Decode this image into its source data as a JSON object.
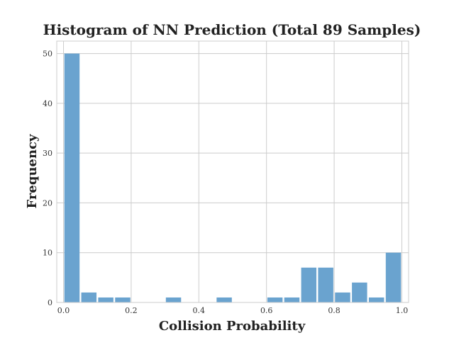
{
  "chart_data": {
    "type": "bar",
    "title": "Histogram of NN Prediction (Total 89 Samples)",
    "xlabel": "Collision Probability",
    "ylabel": "Frequency",
    "xlim": [
      -0.02,
      1.02
    ],
    "ylim": [
      0,
      52.5
    ],
    "xticks": [
      0.0,
      0.2,
      0.4,
      0.6,
      0.8,
      1.0
    ],
    "xtick_labels": [
      "0.0",
      "0.2",
      "0.4",
      "0.6",
      "0.8",
      "1.0"
    ],
    "yticks": [
      0,
      10,
      20,
      30,
      40,
      50
    ],
    "ytick_labels": [
      "0",
      "10",
      "20",
      "30",
      "40",
      "50"
    ],
    "grid": true,
    "bar_color": "#6aa3cf",
    "bins": [
      [
        0.0,
        0.05
      ],
      [
        0.05,
        0.1
      ],
      [
        0.1,
        0.15
      ],
      [
        0.15,
        0.2
      ],
      [
        0.2,
        0.25
      ],
      [
        0.25,
        0.3
      ],
      [
        0.3,
        0.35
      ],
      [
        0.35,
        0.4
      ],
      [
        0.4,
        0.45
      ],
      [
        0.45,
        0.5
      ],
      [
        0.5,
        0.55
      ],
      [
        0.55,
        0.6
      ],
      [
        0.6,
        0.65
      ],
      [
        0.65,
        0.7
      ],
      [
        0.7,
        0.75
      ],
      [
        0.75,
        0.8
      ],
      [
        0.8,
        0.85
      ],
      [
        0.85,
        0.9
      ],
      [
        0.9,
        0.95
      ],
      [
        0.95,
        1.0
      ]
    ],
    "values": [
      50,
      2,
      1,
      1,
      0,
      0,
      1,
      0,
      0,
      1,
      0,
      0,
      1,
      1,
      7,
      7,
      2,
      4,
      1,
      10
    ]
  }
}
